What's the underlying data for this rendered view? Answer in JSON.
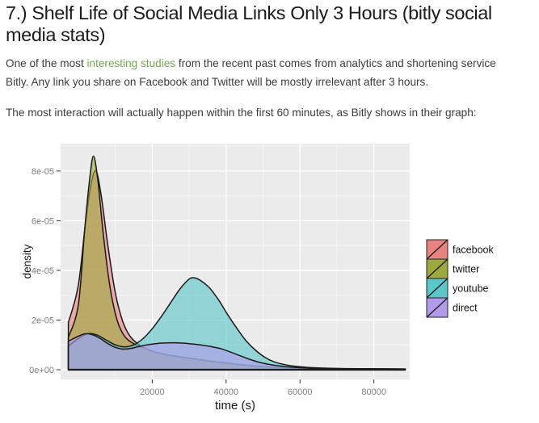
{
  "page": {
    "heading": "7.) Shelf Life of Social Media Links Only 3 Hours (bitly social media stats)",
    "paragraph1": {
      "before": "One of the most ",
      "link": "interesting studies",
      "after": " from the recent past comes from analytics and shortening service Bitly. Any link you share on Facebook and Twitter will be mostly irrelevant after 3 hours."
    },
    "paragraph2": "The most interaction will actually happen within the first 60 minutes, as Bitly shows in their graph:",
    "heading_color": "#1c1c1c",
    "text_color": "#3d3d3d",
    "link_color": "#76a556"
  },
  "chart_data": {
    "type": "area",
    "subtype": "overlapping-density-curves",
    "title": "",
    "xlabel": "time (s)",
    "ylabel": "density",
    "density_unit": "1e-05",
    "xlim": [
      -4800,
      89700
    ],
    "ylim_e05": [
      -0.39,
      9.1
    ],
    "x_ticks": [
      {
        "value": 20000,
        "label": "20000"
      },
      {
        "value": 40000,
        "label": "40000"
      },
      {
        "value": 60000,
        "label": "60000"
      },
      {
        "value": 80000,
        "label": "80000"
      }
    ],
    "y_ticks": [
      {
        "value": 0,
        "label": "0e+00"
      },
      {
        "value": 2,
        "label": "2e-05"
      },
      {
        "value": 4,
        "label": "4e-05"
      },
      {
        "value": 6,
        "label": "6e-05"
      },
      {
        "value": 8,
        "label": "8e-05"
      }
    ],
    "x_minor": [
      10000,
      30000,
      50000,
      70000
    ],
    "y_minor": [
      1,
      3,
      5,
      7,
      9
    ],
    "panel_bg": "#ebebeb",
    "grid_major_color": "#ffffff",
    "grid_minor_color": "#f4f4f4",
    "tick_color": "#333333",
    "tick_label_color": "#7f7f7f",
    "axis_title_color": "#1a1a1a",
    "outline_color": "#1a1a1a",
    "fill_opacity": 0.62,
    "legend": {
      "position": "right",
      "entries": [
        "facebook",
        "twitter",
        "youtube",
        "direct"
      ],
      "label_color": "#111111"
    },
    "series": [
      {
        "name": "facebook",
        "color": "#e8837f",
        "points": [
          [
            -2700,
            1.9
          ],
          [
            0,
            3.4
          ],
          [
            2000,
            6.0
          ],
          [
            3500,
            7.5
          ],
          [
            4800,
            8.0
          ],
          [
            6200,
            7.0
          ],
          [
            8000,
            5.0
          ],
          [
            10000,
            3.1
          ],
          [
            12000,
            1.95
          ],
          [
            14000,
            1.35
          ],
          [
            16500,
            1.0
          ],
          [
            19500,
            0.78
          ],
          [
            23000,
            0.62
          ],
          [
            28000,
            0.5
          ],
          [
            33000,
            0.4
          ],
          [
            38000,
            0.3
          ],
          [
            43000,
            0.22
          ],
          [
            48000,
            0.15
          ],
          [
            53000,
            0.1
          ],
          [
            58000,
            0.065
          ],
          [
            65000,
            0.045
          ],
          [
            75000,
            0.03
          ],
          [
            88500,
            0.025
          ]
        ]
      },
      {
        "name": "twitter",
        "color": "#9da83f",
        "points": [
          [
            -2700,
            1.3
          ],
          [
            0,
            2.6
          ],
          [
            1700,
            5.6
          ],
          [
            3000,
            7.6
          ],
          [
            4100,
            8.6
          ],
          [
            5300,
            7.6
          ],
          [
            6800,
            5.4
          ],
          [
            8600,
            3.3
          ],
          [
            10500,
            2.0
          ],
          [
            12500,
            1.35
          ],
          [
            15000,
            1.05
          ],
          [
            18000,
            0.85
          ],
          [
            21000,
            0.7
          ],
          [
            25000,
            0.58
          ],
          [
            30000,
            0.47
          ],
          [
            35000,
            0.36
          ],
          [
            40000,
            0.27
          ],
          [
            45000,
            0.19
          ],
          [
            50000,
            0.12
          ],
          [
            55000,
            0.08
          ],
          [
            62000,
            0.05
          ],
          [
            72000,
            0.035
          ],
          [
            88500,
            0.025
          ]
        ]
      },
      {
        "name": "youtube",
        "color": "#5cc6c9",
        "points": [
          [
            -2700,
            0.95
          ],
          [
            0,
            1.25
          ],
          [
            2500,
            1.45
          ],
          [
            5000,
            1.4
          ],
          [
            7500,
            1.2
          ],
          [
            10000,
            1.0
          ],
          [
            12500,
            0.92
          ],
          [
            15000,
            1.0
          ],
          [
            17500,
            1.25
          ],
          [
            20000,
            1.65
          ],
          [
            22500,
            2.15
          ],
          [
            25000,
            2.7
          ],
          [
            27500,
            3.25
          ],
          [
            30000,
            3.65
          ],
          [
            31500,
            3.7
          ],
          [
            33000,
            3.6
          ],
          [
            35500,
            3.3
          ],
          [
            38000,
            2.8
          ],
          [
            40500,
            2.2
          ],
          [
            43000,
            1.65
          ],
          [
            45500,
            1.15
          ],
          [
            48000,
            0.78
          ],
          [
            50500,
            0.5
          ],
          [
            53000,
            0.32
          ],
          [
            56000,
            0.2
          ],
          [
            60000,
            0.12
          ],
          [
            65000,
            0.07
          ],
          [
            72000,
            0.045
          ],
          [
            88500,
            0.03
          ]
        ]
      },
      {
        "name": "direct",
        "color": "#b29bea",
        "points": [
          [
            -2700,
            1.15
          ],
          [
            0,
            1.35
          ],
          [
            2000,
            1.45
          ],
          [
            4000,
            1.4
          ],
          [
            6000,
            1.25
          ],
          [
            8000,
            1.05
          ],
          [
            10000,
            0.9
          ],
          [
            12000,
            0.83
          ],
          [
            14000,
            0.85
          ],
          [
            16000,
            0.92
          ],
          [
            18500,
            1.0
          ],
          [
            21000,
            1.05
          ],
          [
            24000,
            1.08
          ],
          [
            27000,
            1.08
          ],
          [
            30000,
            1.05
          ],
          [
            33000,
            1.0
          ],
          [
            36000,
            0.93
          ],
          [
            38500,
            0.85
          ],
          [
            41000,
            0.72
          ],
          [
            43500,
            0.58
          ],
          [
            46000,
            0.44
          ],
          [
            48500,
            0.32
          ],
          [
            51000,
            0.23
          ],
          [
            54000,
            0.16
          ],
          [
            58000,
            0.1
          ],
          [
            63000,
            0.06
          ],
          [
            70000,
            0.04
          ],
          [
            88500,
            0.03
          ]
        ]
      }
    ]
  }
}
